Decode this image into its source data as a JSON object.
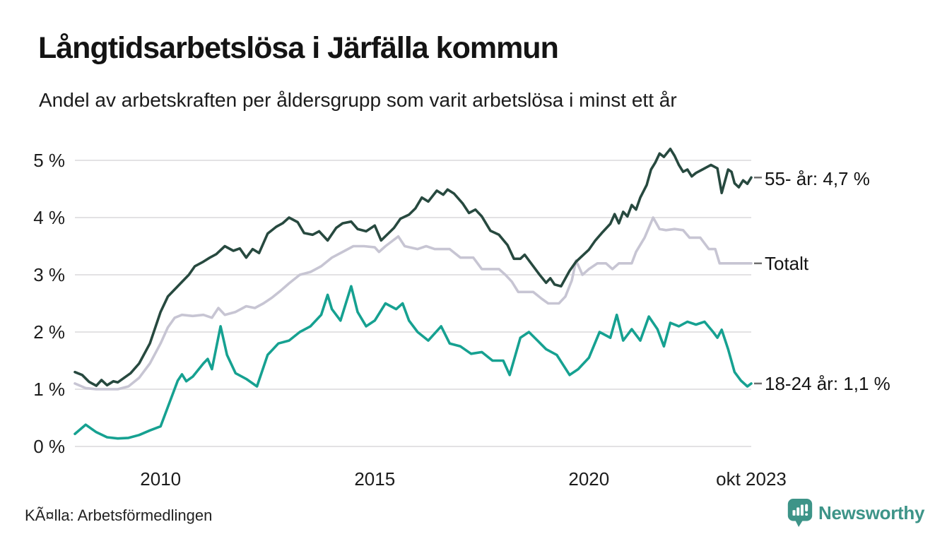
{
  "header": {
    "title": "Långtidsarbetslösa i Järfälla kommun",
    "subtitle": "Andel av arbetskraften per åldersgrupp som varit arbetslösa i minst ett år"
  },
  "footer": {
    "source": "KÃ¤lla: Arbetsförmedlingen",
    "brand": "Newsworthy",
    "brand_color": "#3d9488"
  },
  "colors": {
    "series_55": "#27493f",
    "series_totalt": "#c7c5d3",
    "series_18_24": "#16a191",
    "grid": "#e3e2e4",
    "end_tick": "#6f6f6f",
    "text": "#1c1c1c"
  },
  "chart_data": {
    "type": "line",
    "title": "Långtidsarbetslösa i Järfälla kommun",
    "subtitle": "Andel av arbetskraften per åldersgrupp som varit arbetslösa i minst ett år",
    "x_unit": "decimal_year_monthly",
    "x_range": [
      2008.0,
      2023.79
    ],
    "y_range": [
      0,
      5
    ],
    "ylabel": "",
    "xlabel": "",
    "grid": "horizontal",
    "legend_position": "right-end-labels",
    "y_ticks": [
      "0 %",
      "1 %",
      "2 %",
      "3 %",
      "4 %",
      "5 %"
    ],
    "x_ticks": [
      {
        "x": 2010,
        "label": "2010"
      },
      {
        "x": 2015,
        "label": "2015"
      },
      {
        "x": 2020,
        "label": "2020"
      },
      {
        "x": 2023.79,
        "label": "okt 2023"
      }
    ],
    "series": [
      {
        "name": "Totalt",
        "end_label": "Totalt",
        "end_value": 3.2,
        "color": "#c7c5d3",
        "x": [
          2008.0,
          2008.25,
          2008.5,
          2008.75,
          2009.0,
          2009.25,
          2009.5,
          2009.75,
          2010.0,
          2010.17,
          2010.33,
          2010.5,
          2010.75,
          2011.0,
          2011.2,
          2011.35,
          2011.5,
          2011.75,
          2012.0,
          2012.2,
          2012.4,
          2012.6,
          2012.8,
          2013.0,
          2013.25,
          2013.5,
          2013.75,
          2014.0,
          2014.25,
          2014.5,
          2014.75,
          2015.0,
          2015.1,
          2015.25,
          2015.55,
          2015.7,
          2016.0,
          2016.2,
          2016.4,
          2016.75,
          2017.0,
          2017.3,
          2017.5,
          2017.9,
          2018.05,
          2018.2,
          2018.35,
          2018.7,
          2018.9,
          2019.05,
          2019.3,
          2019.45,
          2019.6,
          2019.7,
          2019.85,
          2020.0,
          2020.2,
          2020.4,
          2020.55,
          2020.7,
          2021.0,
          2021.1,
          2021.3,
          2021.5,
          2021.65,
          2021.8,
          2022.0,
          2022.2,
          2022.35,
          2022.6,
          2022.8,
          2022.95,
          2023.05,
          2023.4,
          2023.79
        ],
        "y": [
          1.1,
          1.02,
          1.0,
          1.0,
          1.0,
          1.05,
          1.2,
          1.45,
          1.8,
          2.08,
          2.25,
          2.3,
          2.28,
          2.3,
          2.25,
          2.42,
          2.3,
          2.35,
          2.45,
          2.42,
          2.5,
          2.6,
          2.72,
          2.85,
          3.0,
          3.05,
          3.15,
          3.3,
          3.4,
          3.5,
          3.5,
          3.48,
          3.4,
          3.5,
          3.67,
          3.5,
          3.45,
          3.5,
          3.45,
          3.45,
          3.3,
          3.3,
          3.1,
          3.1,
          3.0,
          2.88,
          2.7,
          2.7,
          2.58,
          2.5,
          2.5,
          2.62,
          2.9,
          3.25,
          3.0,
          3.1,
          3.2,
          3.2,
          3.1,
          3.2,
          3.2,
          3.4,
          3.65,
          4.0,
          3.8,
          3.78,
          3.8,
          3.78,
          3.65,
          3.65,
          3.45,
          3.45,
          3.2,
          3.2,
          3.2
        ]
      },
      {
        "name": "55- år",
        "end_label": "55- år: 4,7 %",
        "end_value": 4.7,
        "color": "#27493f",
        "x": [
          2008.0,
          2008.17,
          2008.33,
          2008.5,
          2008.62,
          2008.75,
          2008.9,
          2009.0,
          2009.15,
          2009.3,
          2009.5,
          2009.75,
          2010.0,
          2010.17,
          2010.4,
          2010.66,
          2010.8,
          2011.0,
          2011.15,
          2011.3,
          2011.5,
          2011.7,
          2011.85,
          2012.0,
          2012.15,
          2012.3,
          2012.5,
          2012.7,
          2012.85,
          2013.0,
          2013.2,
          2013.35,
          2013.55,
          2013.7,
          2013.9,
          2014.1,
          2014.25,
          2014.45,
          2014.6,
          2014.8,
          2015.0,
          2015.15,
          2015.45,
          2015.6,
          2015.8,
          2015.95,
          2016.1,
          2016.25,
          2016.45,
          2016.6,
          2016.7,
          2016.85,
          2017.05,
          2017.2,
          2017.35,
          2017.5,
          2017.7,
          2017.9,
          2018.1,
          2018.25,
          2018.4,
          2018.5,
          2018.65,
          2018.85,
          2019.0,
          2019.1,
          2019.2,
          2019.35,
          2019.55,
          2019.7,
          2020.0,
          2020.15,
          2020.3,
          2020.5,
          2020.6,
          2020.7,
          2020.8,
          2020.9,
          2021.0,
          2021.1,
          2021.2,
          2021.35,
          2021.45,
          2021.55,
          2021.65,
          2021.75,
          2021.9,
          2022.0,
          2022.1,
          2022.2,
          2022.3,
          2022.4,
          2022.5,
          2022.65,
          2022.75,
          2022.85,
          2023.0,
          2023.1,
          2023.25,
          2023.33,
          2023.4,
          2023.5,
          2023.6,
          2023.7,
          2023.79
        ],
        "y": [
          1.3,
          1.25,
          1.13,
          1.06,
          1.16,
          1.07,
          1.14,
          1.12,
          1.2,
          1.28,
          1.45,
          1.8,
          2.35,
          2.62,
          2.8,
          3.0,
          3.15,
          3.23,
          3.3,
          3.36,
          3.5,
          3.42,
          3.46,
          3.3,
          3.45,
          3.38,
          3.72,
          3.84,
          3.9,
          4.0,
          3.92,
          3.73,
          3.7,
          3.76,
          3.6,
          3.82,
          3.9,
          3.93,
          3.8,
          3.76,
          3.86,
          3.6,
          3.82,
          3.98,
          4.05,
          4.16,
          4.35,
          4.28,
          4.47,
          4.4,
          4.49,
          4.42,
          4.25,
          4.08,
          4.14,
          4.02,
          3.77,
          3.7,
          3.52,
          3.28,
          3.28,
          3.35,
          3.2,
          3.0,
          2.86,
          2.94,
          2.83,
          2.8,
          3.07,
          3.23,
          3.44,
          3.6,
          3.73,
          3.89,
          4.06,
          3.9,
          4.1,
          4.02,
          4.22,
          4.14,
          4.35,
          4.57,
          4.84,
          4.96,
          5.12,
          5.06,
          5.2,
          5.08,
          4.92,
          4.8,
          4.84,
          4.72,
          4.78,
          4.84,
          4.88,
          4.92,
          4.86,
          4.43,
          4.84,
          4.8,
          4.6,
          4.53,
          4.65,
          4.59,
          4.7
        ]
      },
      {
        "name": "18-24 år",
        "end_label": "18-24 år: 1,1 %",
        "end_value": 1.1,
        "color": "#16a191",
        "x": [
          2008.0,
          2008.25,
          2008.5,
          2008.75,
          2009.0,
          2009.25,
          2009.5,
          2009.75,
          2010.0,
          2010.25,
          2010.4,
          2010.5,
          2010.6,
          2010.75,
          2011.0,
          2011.1,
          2011.2,
          2011.4,
          2011.55,
          2011.75,
          2012.0,
          2012.25,
          2012.5,
          2012.75,
          2013.0,
          2013.25,
          2013.5,
          2013.75,
          2013.9,
          2014.0,
          2014.2,
          2014.45,
          2014.6,
          2014.8,
          2015.0,
          2015.25,
          2015.5,
          2015.65,
          2015.8,
          2016.0,
          2016.25,
          2016.55,
          2016.75,
          2017.0,
          2017.25,
          2017.5,
          2017.75,
          2018.0,
          2018.15,
          2018.4,
          2018.6,
          2018.8,
          2019.0,
          2019.25,
          2019.55,
          2019.75,
          2020.0,
          2020.25,
          2020.5,
          2020.65,
          2020.8,
          2021.0,
          2021.2,
          2021.4,
          2021.6,
          2021.75,
          2021.9,
          2022.1,
          2022.3,
          2022.5,
          2022.7,
          2022.9,
          2023.0,
          2023.1,
          2023.25,
          2023.4,
          2023.55,
          2023.7,
          2023.79
        ],
        "y": [
          0.22,
          0.38,
          0.25,
          0.16,
          0.14,
          0.15,
          0.2,
          0.28,
          0.35,
          0.85,
          1.15,
          1.26,
          1.14,
          1.22,
          1.45,
          1.53,
          1.35,
          2.1,
          1.6,
          1.28,
          1.18,
          1.05,
          1.6,
          1.8,
          1.85,
          2.0,
          2.1,
          2.3,
          2.65,
          2.4,
          2.2,
          2.8,
          2.35,
          2.1,
          2.2,
          2.5,
          2.4,
          2.5,
          2.2,
          2.0,
          1.85,
          2.1,
          1.8,
          1.75,
          1.62,
          1.65,
          1.5,
          1.5,
          1.25,
          1.9,
          2.0,
          1.85,
          1.7,
          1.6,
          1.25,
          1.35,
          1.55,
          2.0,
          1.9,
          2.3,
          1.85,
          2.05,
          1.85,
          2.27,
          2.05,
          1.75,
          2.16,
          2.1,
          2.18,
          2.13,
          2.18,
          2.0,
          1.9,
          2.04,
          1.7,
          1.3,
          1.15,
          1.05,
          1.1
        ]
      }
    ]
  }
}
